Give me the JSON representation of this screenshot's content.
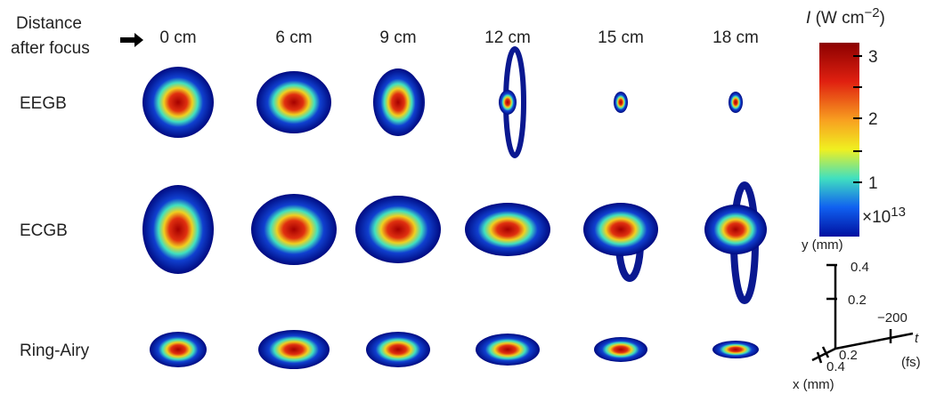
{
  "header": {
    "distance_label": [
      "Distance",
      "after focus"
    ]
  },
  "columns": [
    "0 cm",
    "6 cm",
    "9 cm",
    "12 cm",
    "15 cm",
    "18 cm"
  ],
  "rows": [
    "EEGB",
    "ECGB",
    "Ring-Airy"
  ],
  "colorbar": {
    "symbol": "I",
    "unit_open": "(W cm",
    "unit_exp": "−2",
    "unit_close": ")",
    "ticks": [
      "3",
      "2",
      "1"
    ],
    "multiplier": "×10",
    "multiplier_exp": "13"
  },
  "axes": {
    "y_label": "y (mm)",
    "y_ticks": [
      "0.4",
      "0.2"
    ],
    "t_tick": "−200",
    "t_label": "t",
    "t_unit": "(fs)",
    "x_ticks": [
      "0.2",
      "0.4"
    ],
    "x_label": "x (mm)"
  }
}
